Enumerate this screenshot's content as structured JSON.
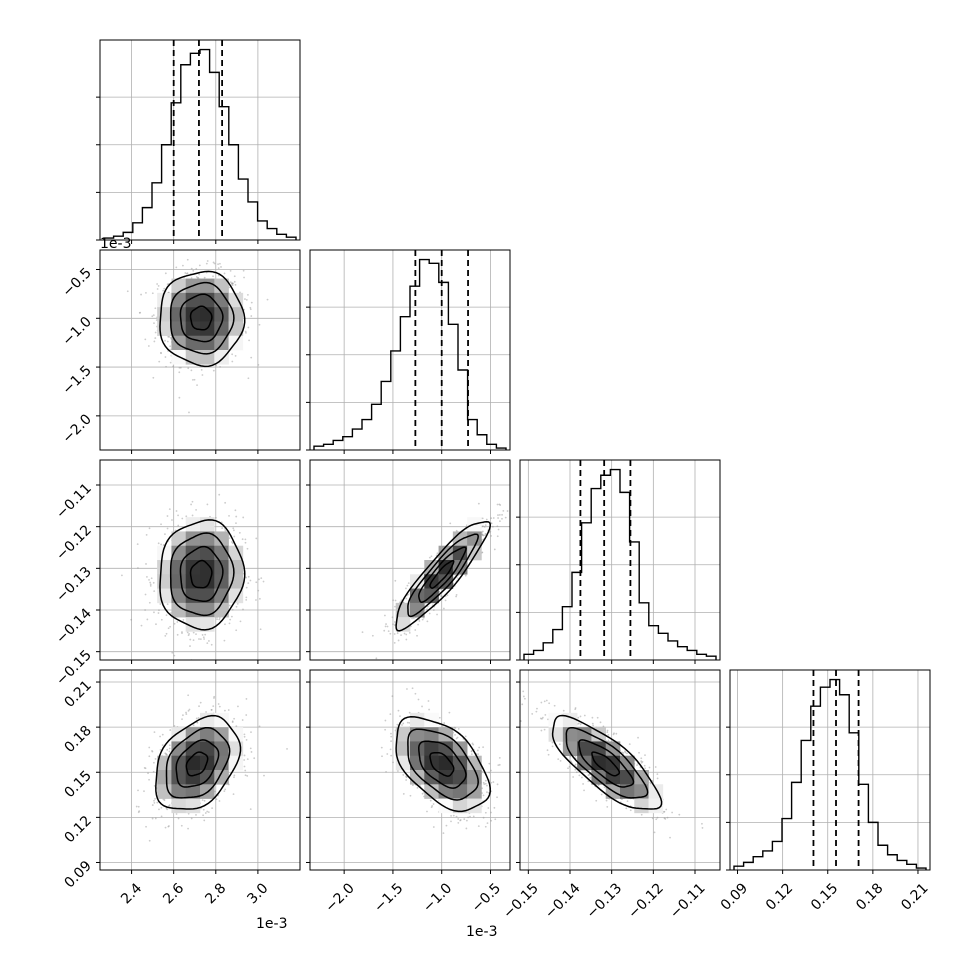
{
  "chart_data": {
    "type": "corner",
    "title": "",
    "parameters": [
      {
        "offset": "1e-3",
        "range": [
          2.25,
          3.2
        ],
        "ticks": [
          2.4,
          2.6,
          2.8,
          3.0
        ],
        "tick_labels": [
          "2.4",
          "2.6",
          "2.8",
          "3.0"
        ]
      },
      {
        "offset": "1e-3",
        "range": [
          -2.35,
          -0.3
        ],
        "ticks": [
          -2.0,
          -1.5,
          -1.0,
          -0.5
        ],
        "tick_labels": [
          "−2.0",
          "−1.5",
          "−1.0",
          "−0.5"
        ]
      },
      {
        "offset": "",
        "range": [
          -0.152,
          -0.104
        ],
        "ticks": [
          -0.15,
          -0.14,
          -0.13,
          -0.12,
          -0.11
        ],
        "tick_labels": [
          "−0.15",
          "−0.14",
          "−0.13",
          "−0.12",
          "−0.11"
        ]
      },
      {
        "offset": "",
        "range": [
          0.085,
          0.218
        ],
        "ticks": [
          0.09,
          0.12,
          0.15,
          0.18,
          0.21
        ],
        "tick_labels": [
          "0.09",
          "0.12",
          "0.15",
          "0.18",
          "0.21"
        ]
      }
    ],
    "quantiles": [
      [
        2.6,
        2.72,
        2.83
      ],
      [
        -1.27,
        -1.0,
        -0.73
      ],
      [
        -0.1375,
        -0.1318,
        -0.1255
      ],
      [
        0.1405,
        0.1555,
        0.1705
      ]
    ],
    "histograms": [
      [
        0.01,
        0.02,
        0.04,
        0.09,
        0.17,
        0.3,
        0.5,
        0.72,
        0.92,
        0.98,
        1.0,
        0.88,
        0.7,
        0.5,
        0.32,
        0.2,
        0.1,
        0.06,
        0.03,
        0.015
      ],
      [
        0.02,
        0.03,
        0.05,
        0.07,
        0.11,
        0.16,
        0.24,
        0.36,
        0.52,
        0.7,
        0.86,
        1.0,
        0.98,
        0.88,
        0.66,
        0.42,
        0.16,
        0.08,
        0.03,
        0.01
      ],
      [
        0.03,
        0.05,
        0.09,
        0.16,
        0.28,
        0.46,
        0.72,
        0.9,
        0.97,
        1.0,
        0.88,
        0.62,
        0.3,
        0.18,
        0.14,
        0.1,
        0.07,
        0.05,
        0.03,
        0.02
      ],
      [
        0.02,
        0.04,
        0.07,
        0.1,
        0.15,
        0.27,
        0.46,
        0.68,
        0.86,
        0.96,
        1.0,
        0.92,
        0.72,
        0.45,
        0.25,
        0.13,
        0.08,
        0.05,
        0.03,
        0.01
      ]
    ],
    "hist_y_ticks": [
      0.0,
      0.25,
      0.5,
      0.75
    ],
    "pairs": [
      {
        "row": 1,
        "col": 0,
        "center": [
          2.73,
          -1.0
        ],
        "sigma": [
          0.1,
          0.24
        ],
        "rho": 0.0
      },
      {
        "row": 2,
        "col": 0,
        "center": [
          2.73,
          -0.1315
        ],
        "sigma": [
          0.1,
          0.0065
        ],
        "rho": 0.05
      },
      {
        "row": 2,
        "col": 1,
        "center": [
          -1.0,
          -0.1315
        ],
        "sigma": [
          0.24,
          0.0065
        ],
        "rho": 0.9
      },
      {
        "row": 3,
        "col": 0,
        "center": [
          2.71,
          0.1555
        ],
        "sigma": [
          0.1,
          0.0155
        ],
        "rho": 0.35
      },
      {
        "row": 3,
        "col": 1,
        "center": [
          -1.0,
          0.1555
        ],
        "sigma": [
          0.24,
          0.0155
        ],
        "rho": -0.5
      },
      {
        "row": 3,
        "col": 2,
        "center": [
          -0.1315,
          0.1555
        ],
        "sigma": [
          0.0065,
          0.0155
        ],
        "rho": -0.78
      }
    ],
    "contour_levels": [
      0.5,
      1.0,
      1.5,
      2.0
    ],
    "grid": true,
    "style": {
      "line": "#000000",
      "grid": "#b0b0b0",
      "samples": "#9a9a9a"
    }
  }
}
